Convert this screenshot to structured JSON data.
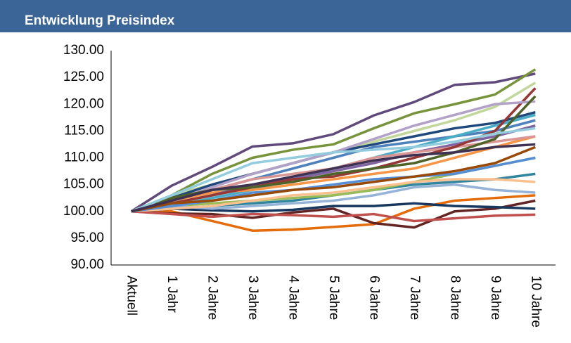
{
  "chart_data": {
    "type": "line",
    "title": "Entwicklung Preisindex",
    "categories": [
      "Aktuell",
      "1 Jahr",
      "2 Jahre",
      "3 Jahre",
      "4 Jahre",
      "5 Jahre",
      "6 Jahre",
      "7 Jahre",
      "8 Jahre",
      "9 Jahre",
      "10 Jahre"
    ],
    "ylim": [
      90,
      130
    ],
    "yticks": [
      {
        "value": 90,
        "label": "90.00"
      },
      {
        "value": 95,
        "label": "95.00"
      },
      {
        "value": 100,
        "label": "100.00"
      },
      {
        "value": 105,
        "label": "105.00"
      },
      {
        "value": 110,
        "label": "110.00"
      },
      {
        "value": 115,
        "label": "115.00"
      },
      {
        "value": 120,
        "label": "120.00"
      },
      {
        "value": 125,
        "label": "125.00"
      },
      {
        "value": 130,
        "label": "130.00"
      }
    ],
    "grid": false,
    "series": [
      {
        "color": "#604a7b",
        "values": [
          100,
          104.8,
          108.3,
          112.1,
          112.7,
          114.4,
          117.9,
          120.4,
          123.6,
          124.1,
          125.7
        ]
      },
      {
        "color": "#77933c",
        "values": [
          100,
          103,
          107,
          110,
          111.5,
          112.5,
          115.5,
          118.3,
          120,
          121.8,
          126.5
        ]
      },
      {
        "color": "#e46c0a",
        "values": [
          100,
          100,
          98.2,
          96.4,
          96.6,
          97.1,
          97.6,
          100.5,
          102,
          102.5,
          103
        ]
      },
      {
        "color": "#632523",
        "values": [
          100,
          99.6,
          99.5,
          98.8,
          99.8,
          100.5,
          97.8,
          97,
          100,
          100.5,
          102
        ]
      },
      {
        "color": "#c0504d",
        "values": [
          100,
          99.5,
          99,
          99.5,
          99.3,
          99,
          99.5,
          98.2,
          98.7,
          99.2,
          99.4
        ]
      },
      {
        "color": "#4f81bd",
        "values": [
          100,
          102,
          104,
          106,
          108,
          110,
          112,
          113,
          114,
          115,
          117
        ]
      },
      {
        "color": "#4bacc6",
        "values": [
          100,
          101,
          102.5,
          104,
          106,
          108,
          110,
          112,
          114,
          116,
          118
        ]
      },
      {
        "color": "#f79646",
        "values": [
          100,
          102,
          103.5,
          104,
          105,
          106,
          107,
          108,
          110,
          112,
          114
        ]
      },
      {
        "color": "#c3d69b",
        "values": [
          100,
          103,
          105,
          107,
          109,
          111,
          113,
          115,
          117,
          119.5,
          124
        ]
      },
      {
        "color": "#1f497d",
        "values": [
          100,
          102.5,
          105,
          107,
          109,
          111,
          112.5,
          114,
          115.5,
          116.5,
          118.5
        ]
      },
      {
        "color": "#8064a2",
        "values": [
          100,
          101.5,
          103,
          105,
          106,
          107.5,
          109,
          111,
          112.5,
          114,
          116
        ]
      },
      {
        "color": "#31859c",
        "values": [
          100,
          100.5,
          101,
          101.5,
          102,
          103,
          104,
          105,
          105.5,
          106,
          107
        ]
      },
      {
        "color": "#9bbb59",
        "values": [
          100,
          101,
          101.5,
          102,
          102.5,
          103,
          104,
          105.5,
          107,
          108.5,
          110
        ]
      },
      {
        "color": "#d99694",
        "values": [
          100,
          102,
          104,
          106,
          107,
          108,
          110,
          111,
          112,
          113,
          114
        ]
      },
      {
        "color": "#953735",
        "values": [
          100,
          101.5,
          103,
          104.5,
          106,
          106.5,
          108,
          110,
          112,
          115,
          123
        ]
      },
      {
        "color": "#17375e",
        "values": [
          100,
          100.5,
          100.2,
          100,
          100.3,
          101,
          101,
          101.5,
          101,
          100.8,
          100.5
        ]
      },
      {
        "color": "#95b3d7",
        "values": [
          100,
          101,
          100.5,
          101,
          101.5,
          102,
          103,
          104.5,
          105,
          104,
          103.5
        ]
      },
      {
        "color": "#b3a2c7",
        "values": [
          100,
          102,
          104.5,
          107,
          109,
          111,
          113.5,
          116,
          118,
          120,
          120.5
        ]
      },
      {
        "color": "#fac090",
        "values": [
          100,
          100.5,
          101,
          102,
          103,
          103.5,
          104.5,
          105.5,
          106,
          106,
          105.5
        ]
      },
      {
        "color": "#4f6228",
        "values": [
          100,
          102.5,
          104,
          104.5,
          105.5,
          107,
          108,
          109,
          111,
          113.5,
          121.5
        ]
      },
      {
        "color": "#558ed5",
        "values": [
          100,
          101,
          102,
          103.5,
          104,
          105,
          106,
          106.5,
          107,
          108.5,
          110
        ]
      },
      {
        "color": "#984807",
        "values": [
          100,
          101.5,
          102,
          103,
          104,
          104.5,
          105.5,
          106.5,
          107.5,
          109,
          112
        ]
      },
      {
        "color": "#93cddd",
        "values": [
          100,
          103,
          106,
          109,
          110,
          111,
          111.5,
          112,
          113,
          114.5,
          115.5
        ]
      },
      {
        "color": "#3f3151",
        "values": [
          100,
          102,
          104,
          105,
          106.5,
          108,
          109.5,
          110.5,
          111,
          112,
          112.5
        ]
      }
    ]
  }
}
